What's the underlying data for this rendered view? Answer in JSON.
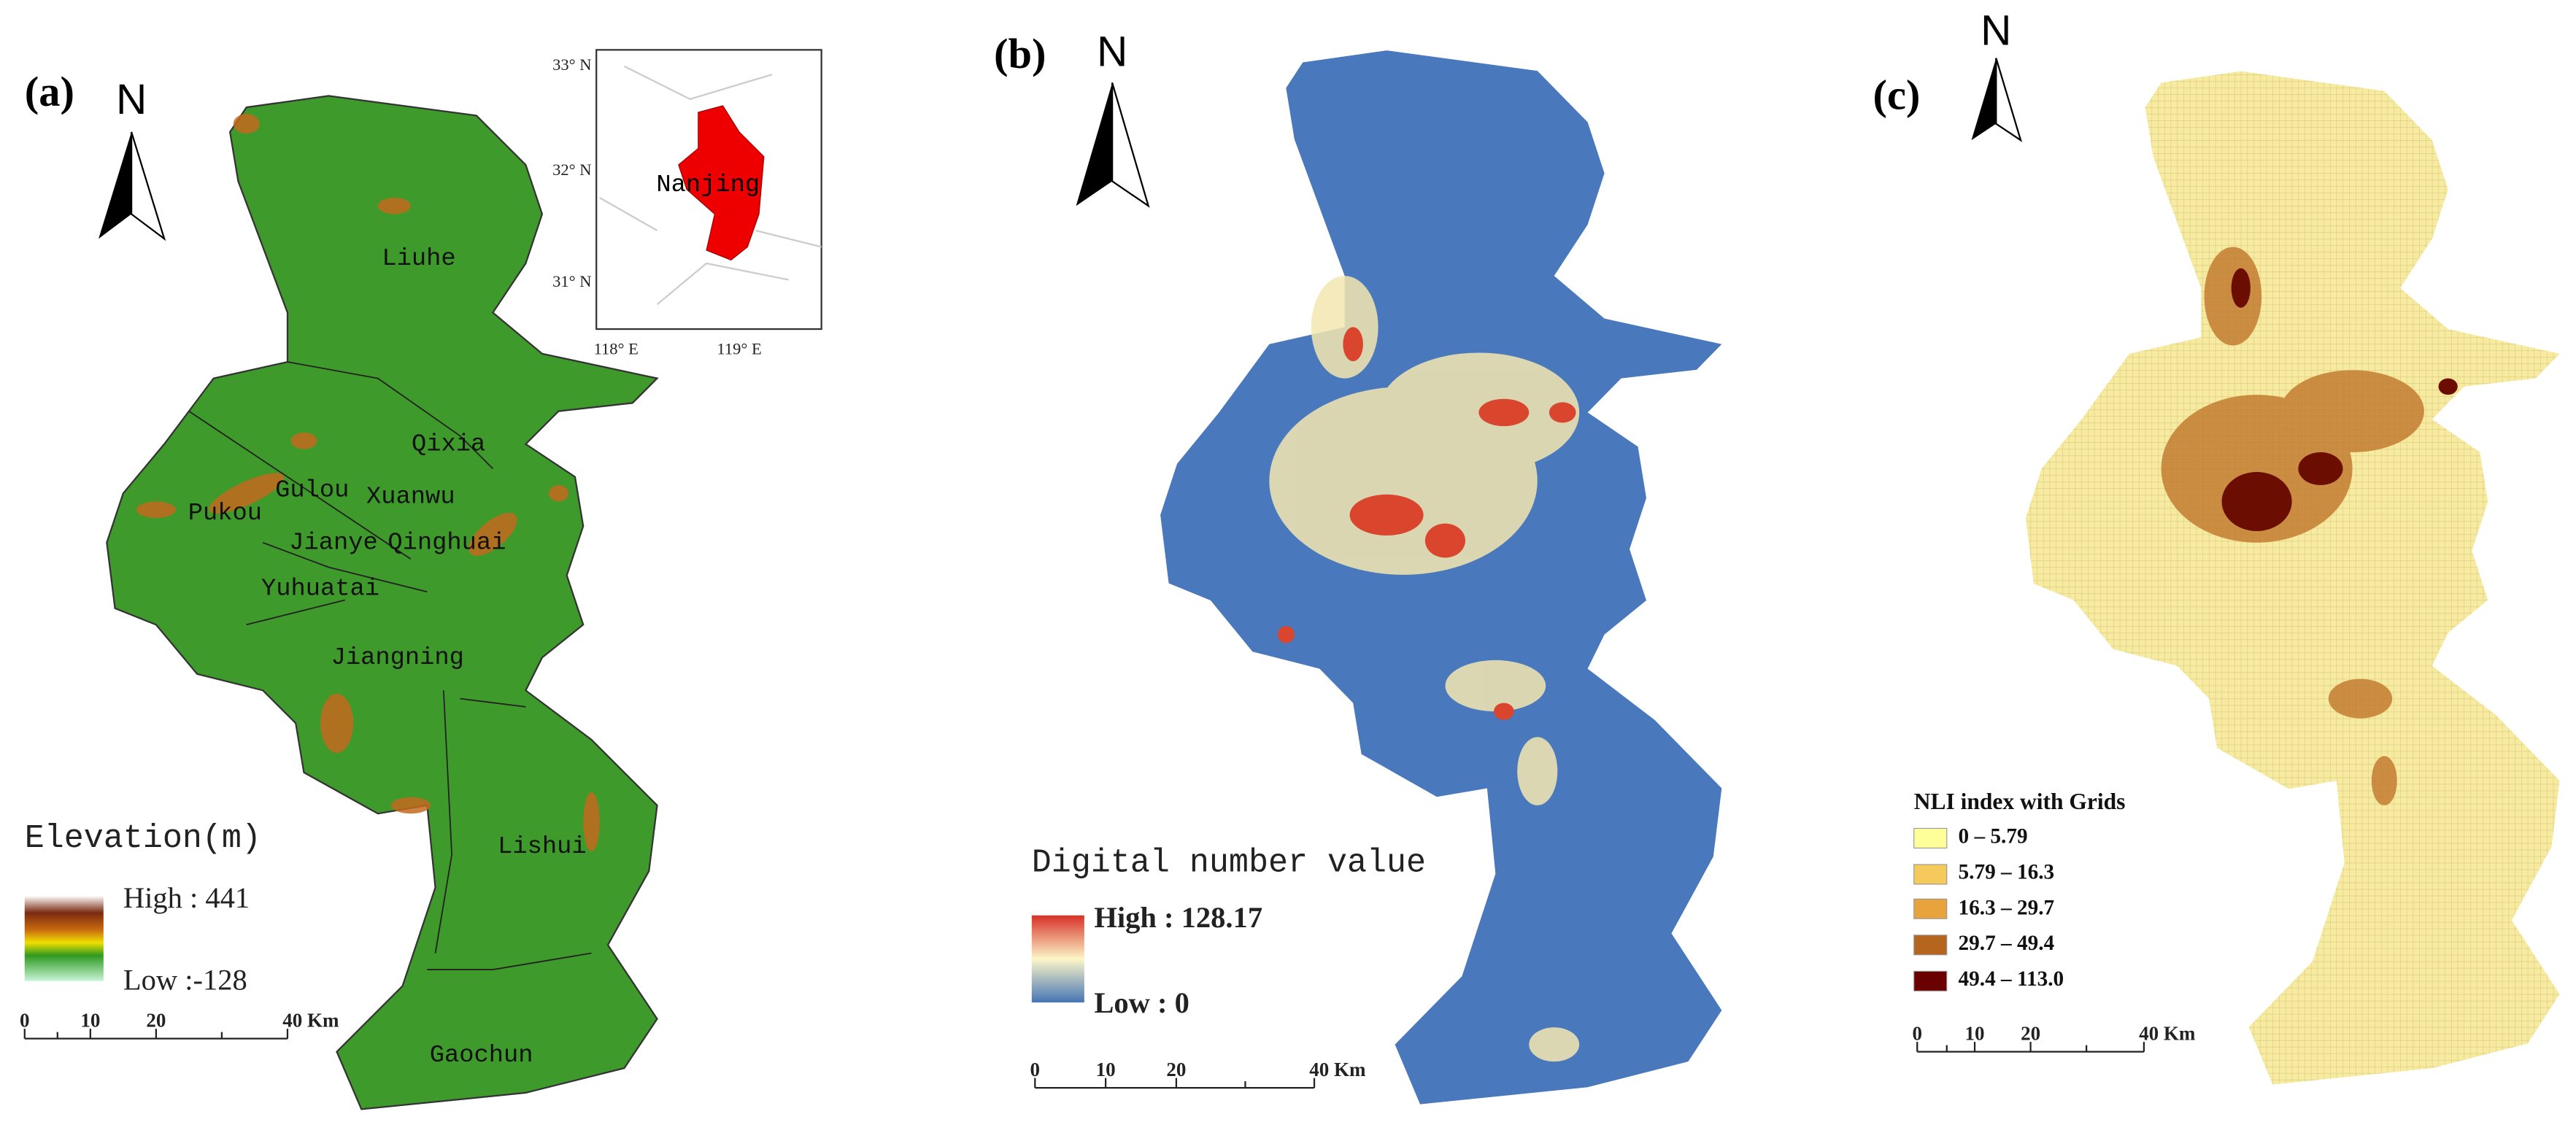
{
  "panels": [
    {
      "label": "(a)",
      "north": "N",
      "districts": [
        "Liuhe",
        "Qixia",
        "Gulou",
        "Xuanwu",
        "Pukou",
        "Jianye",
        "Qinghuai",
        "Yuhuatai",
        "Jiangning",
        "Lishui",
        "Gaochun"
      ],
      "inset": {
        "lat_labels": [
          "33° N",
          "32° N",
          "31° N"
        ],
        "lon_labels": [
          "118° E",
          "119° E"
        ],
        "city": "Nanjing"
      },
      "legend": {
        "title": "Elevation(m)",
        "high": "High : 441",
        "low": "Low :-128"
      },
      "scale": [
        "0",
        "10",
        "20",
        "40 Km"
      ]
    },
    {
      "label": "(b)",
      "north": "N",
      "legend": {
        "title": "Digital number value",
        "high": "High : 128.17",
        "low": "Low : 0"
      },
      "scale": [
        "0",
        "10",
        "20",
        "40 Km"
      ]
    },
    {
      "label": "(c)",
      "north": "N",
      "legend": {
        "title": "NLI index with Grids",
        "classes": [
          "0 – 5.79",
          "5.79 – 16.3",
          "16.3 – 29.7",
          "29.7 – 49.4",
          "49.4 – 113.0"
        ]
      },
      "scale": [
        "0",
        "10",
        "20",
        "40 Km"
      ]
    }
  ]
}
